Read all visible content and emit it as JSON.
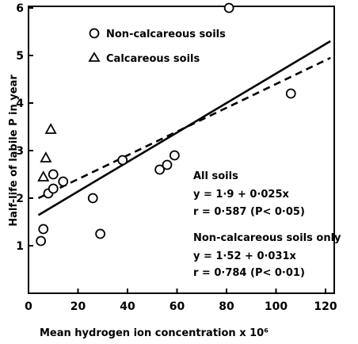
{
  "chart_data": {
    "type": "scatter",
    "xlabel": "Mean hydrogen ion concentration x 10⁶",
    "ylabel": "Half-life of labile P in year",
    "xlim": [
      0,
      120
    ],
    "ylim": [
      0,
      6
    ],
    "xticks": [
      "0",
      "20",
      "40",
      "60",
      "80",
      "100",
      "120"
    ],
    "yticks": [
      "1",
      "2",
      "3",
      "4",
      "5",
      "6"
    ],
    "legend_position": "top-left",
    "series": [
      {
        "name": "Non-calcareous soils",
        "marker": "circle",
        "points": [
          {
            "x": 5,
            "y": 1.1
          },
          {
            "x": 6,
            "y": 1.35
          },
          {
            "x": 8,
            "y": 2.1
          },
          {
            "x": 10,
            "y": 2.2
          },
          {
            "x": 10,
            "y": 2.5
          },
          {
            "x": 14,
            "y": 2.35
          },
          {
            "x": 26,
            "y": 2.0
          },
          {
            "x": 29,
            "y": 1.25
          },
          {
            "x": 38,
            "y": 2.8
          },
          {
            "x": 53,
            "y": 2.6
          },
          {
            "x": 56,
            "y": 2.7
          },
          {
            "x": 59,
            "y": 2.9
          },
          {
            "x": 81,
            "y": 6.0
          },
          {
            "x": 106,
            "y": 4.2
          }
        ]
      },
      {
        "name": "Calcareous soils",
        "marker": "triangle",
        "points": [
          {
            "x": 6,
            "y": 2.45
          },
          {
            "x": 7,
            "y": 2.85
          },
          {
            "x": 9,
            "y": 3.45
          }
        ]
      }
    ],
    "regression_lines": [
      {
        "id": "all",
        "style": "dashed",
        "intercept": 1.9,
        "slope": 0.025,
        "x_range": [
          4,
          122
        ]
      },
      {
        "id": "noncalc",
        "style": "solid",
        "intercept": 1.52,
        "slope": 0.031,
        "x_range": [
          4,
          122
        ]
      }
    ],
    "annotations": {
      "all_title": "All soils",
      "all_eq": "y = 1·9 + 0·025x",
      "all_r": "r = 0·587 (P< 0·05)",
      "nc_title": "Non-calcareous soils only",
      "nc_eq": "y = 1·52 + 0·031x",
      "nc_r": "r = 0·784 (P< 0·01)"
    }
  }
}
